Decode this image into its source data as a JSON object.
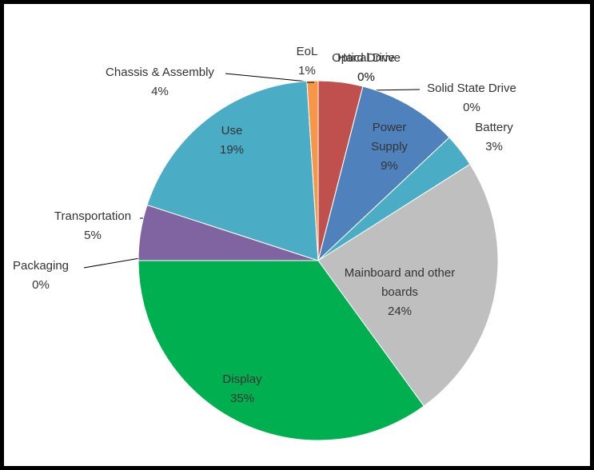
{
  "chart_data": {
    "type": "pie",
    "categories": [
      "Chassis & Assembly",
      "Optical Drive",
      "Hard Drive",
      "Solid State Drive",
      "Power Supply",
      "Battery",
      "Mainboard and other boards",
      "Display",
      "Packaging",
      "Transportation",
      "Use",
      "EoL"
    ],
    "values": [
      4,
      0,
      0,
      0,
      9,
      3,
      24,
      35,
      0,
      5,
      19,
      1
    ],
    "value_labels": [
      "4%",
      "0%",
      "0%",
      "0%",
      "9%",
      "3%",
      "24%",
      "35%",
      "0%",
      "5%",
      "19%",
      "1%"
    ],
    "colors": [
      "#c0504d",
      "#9bbb59",
      "#8064a2",
      "#4bacc6",
      "#4f81bd",
      "#4bacc6",
      "#bfbfbf",
      "#00b050",
      "#9bbb59",
      "#8064a2",
      "#4bacc6",
      "#f79646"
    ]
  }
}
